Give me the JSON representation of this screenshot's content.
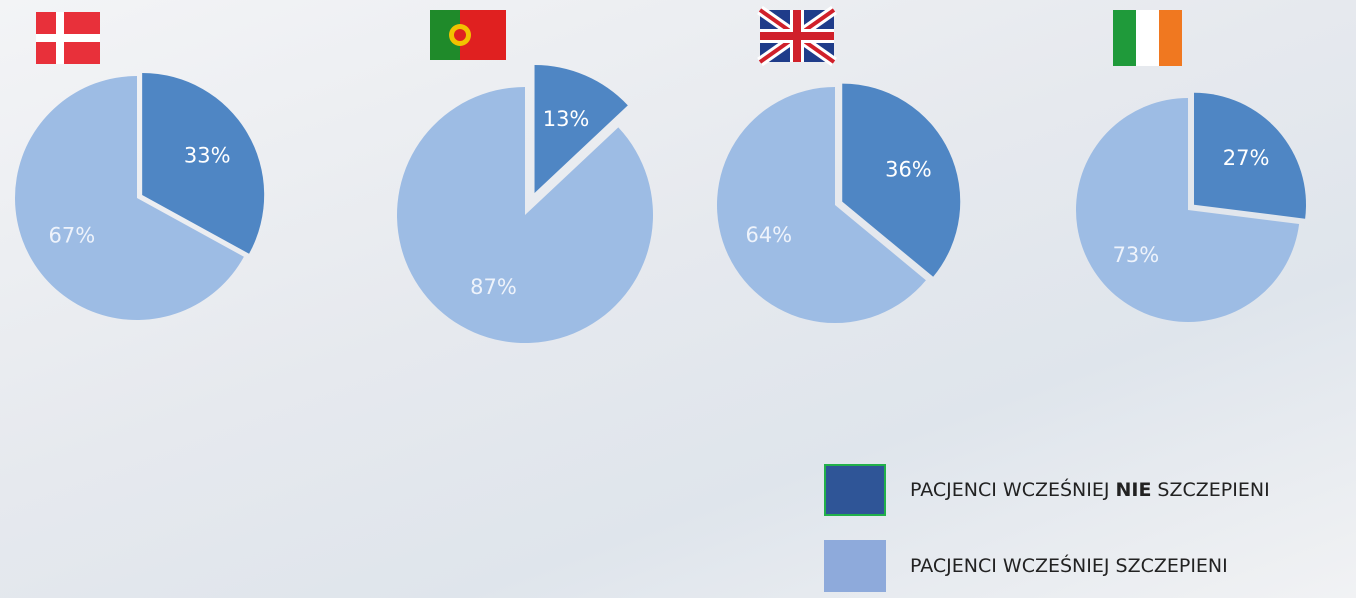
{
  "chart_data": [
    {
      "type": "pie",
      "values": [
        33,
        67
      ],
      "value_labels": [
        "33%",
        "67%"
      ],
      "colors": [
        "#4f86c4",
        "#9dbce4"
      ]
    },
    {
      "type": "pie",
      "values": [
        13,
        87
      ],
      "value_labels": [
        "13%",
        "87%"
      ],
      "colors": [
        "#4f86c4",
        "#9dbce4"
      ]
    },
    {
      "type": "pie",
      "values": [
        36,
        64
      ],
      "value_labels": [
        "36%",
        "64%"
      ],
      "colors": [
        "#4f86c4",
        "#9dbce4"
      ]
    },
    {
      "type": "pie",
      "values": [
        27,
        73
      ],
      "value_labels": [
        "27%",
        "73%"
      ],
      "colors": [
        "#4f86c4",
        "#9dbce4"
      ]
    }
  ],
  "legend": {
    "items": [
      {
        "parts": [
          "PACJENCI WCZEŚNIEJ",
          "NIE",
          "SZCZEPIENI"
        ],
        "color": "#2f5597"
      },
      {
        "parts": [
          "PACJENCI WCZEŚNIEJ SZCZEPIENI"
        ],
        "color": "#8eaadb"
      }
    ]
  }
}
